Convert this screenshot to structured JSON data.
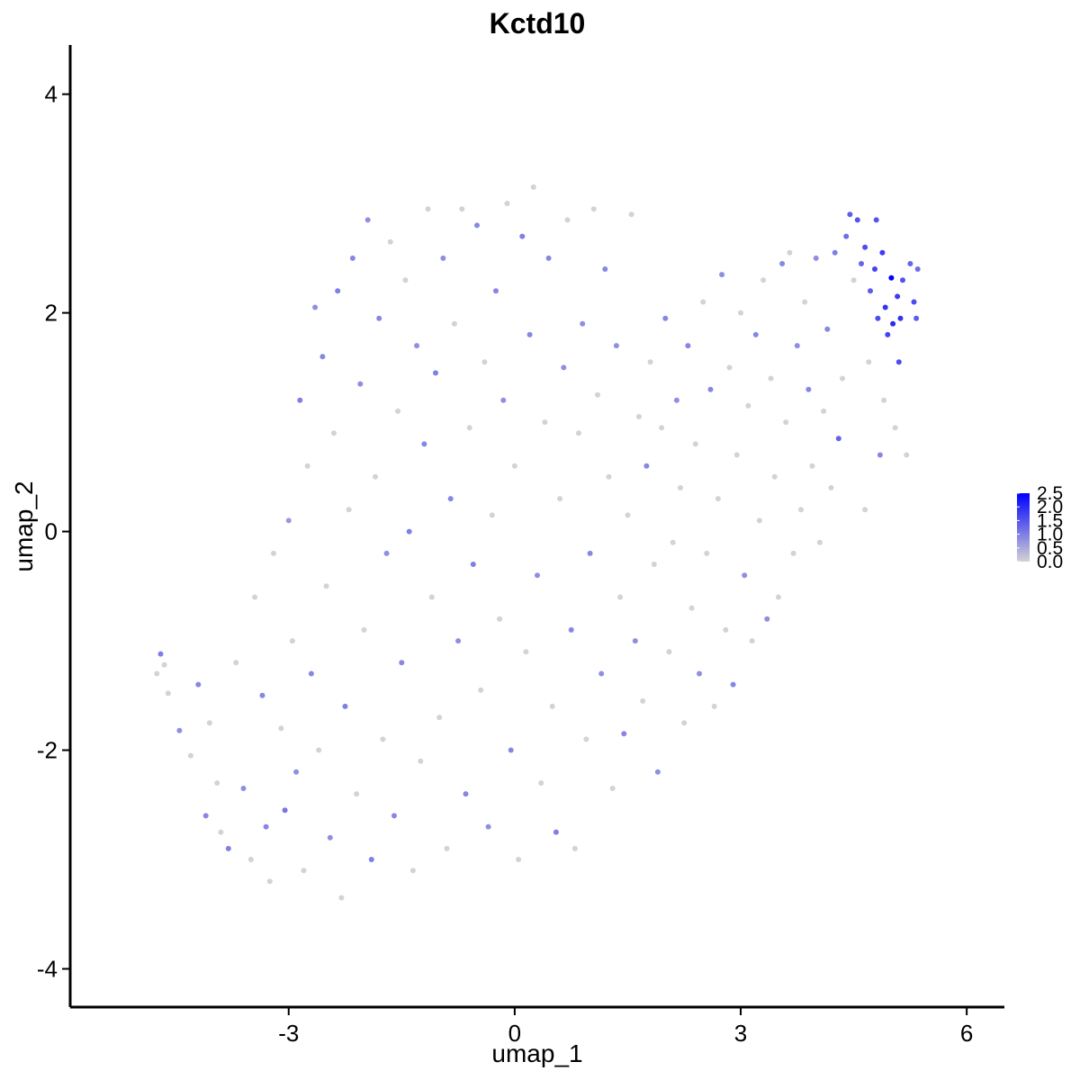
{
  "chart_data": {
    "type": "scatter",
    "title": "Kctd10",
    "xlabel": "umap_1",
    "ylabel": "umap_2",
    "xlim": [
      -5.9,
      6.5
    ],
    "ylim": [
      -4.35,
      4.45
    ],
    "xticks": [
      -3,
      0,
      3,
      6
    ],
    "yticks": [
      -4,
      -2,
      0,
      2,
      4
    ],
    "xtick_labels": [
      "-3",
      "0",
      "3",
      "6"
    ],
    "ytick_labels": [
      "-4",
      "-2",
      "0",
      "2",
      "4"
    ],
    "grid": false,
    "legend": {
      "placement": "right",
      "type": "colorbar",
      "min": 0.0,
      "max": 2.5,
      "ticks": [
        0.0,
        0.5,
        1.0,
        1.5,
        2.0,
        2.5
      ],
      "tick_labels": [
        "0.0",
        "0.5",
        "1.0",
        "1.5",
        "2.0",
        "2.5"
      ],
      "low_color": "#d3d3d3",
      "high_color": "#0000ff"
    },
    "points": [
      [
        -4.75,
        -1.3,
        0
      ],
      [
        -4.7,
        -1.12,
        1.0
      ],
      [
        -4.65,
        -1.22,
        0
      ],
      [
        -4.6,
        -1.48,
        0
      ],
      [
        -4.45,
        -1.82,
        0.8
      ],
      [
        -4.3,
        -2.05,
        0
      ],
      [
        -4.2,
        -1.4,
        0.9
      ],
      [
        -4.1,
        -2.6,
        0.9
      ],
      [
        -4.05,
        -1.75,
        0
      ],
      [
        -3.95,
        -2.3,
        0
      ],
      [
        -3.9,
        -2.75,
        0
      ],
      [
        -3.8,
        -2.9,
        1.0
      ],
      [
        -3.7,
        -1.2,
        0
      ],
      [
        -3.6,
        -2.35,
        0.8
      ],
      [
        -3.5,
        -3.0,
        0
      ],
      [
        -3.45,
        -0.6,
        0
      ],
      [
        -3.35,
        -1.5,
        0.9
      ],
      [
        -3.3,
        -2.7,
        0.9
      ],
      [
        -3.25,
        -3.2,
        0
      ],
      [
        -3.2,
        -0.2,
        0
      ],
      [
        -3.1,
        -1.8,
        0
      ],
      [
        -3.05,
        -2.55,
        1.1
      ],
      [
        -3.0,
        0.1,
        0.7
      ],
      [
        -2.95,
        -1.0,
        0
      ],
      [
        -2.9,
        -2.2,
        0.8
      ],
      [
        -2.85,
        1.2,
        1.0
      ],
      [
        -2.8,
        -3.1,
        0
      ],
      [
        -2.75,
        0.6,
        0
      ],
      [
        -2.7,
        -1.3,
        0.9
      ],
      [
        -2.65,
        2.05,
        0.8
      ],
      [
        -2.6,
        -2.0,
        0
      ],
      [
        -2.55,
        1.6,
        0.9
      ],
      [
        -2.5,
        -0.5,
        0
      ],
      [
        -2.45,
        -2.8,
        0.8
      ],
      [
        -2.4,
        0.9,
        0
      ],
      [
        -2.35,
        2.2,
        1.0
      ],
      [
        -2.3,
        -3.35,
        0
      ],
      [
        -2.25,
        -1.6,
        1.0
      ],
      [
        -2.2,
        0.2,
        0
      ],
      [
        -2.15,
        2.5,
        0.9
      ],
      [
        -2.1,
        -2.4,
        0
      ],
      [
        -2.05,
        1.35,
        0.8
      ],
      [
        -2.0,
        -0.9,
        0
      ],
      [
        -1.95,
        2.85,
        0.8
      ],
      [
        -1.9,
        -3.0,
        1.0
      ],
      [
        -1.85,
        0.5,
        0
      ],
      [
        -1.8,
        1.95,
        0.9
      ],
      [
        -1.75,
        -1.9,
        0
      ],
      [
        -1.7,
        -0.2,
        0.8
      ],
      [
        -1.65,
        2.65,
        0
      ],
      [
        -1.6,
        -2.6,
        0.9
      ],
      [
        -1.55,
        1.1,
        0
      ],
      [
        -1.5,
        -1.2,
        0.9
      ],
      [
        -1.45,
        2.3,
        0
      ],
      [
        -1.4,
        0.0,
        1.0
      ],
      [
        -1.35,
        -3.1,
        0
      ],
      [
        -1.3,
        1.7,
        0.8
      ],
      [
        -1.25,
        -2.1,
        0
      ],
      [
        -1.2,
        0.8,
        0.9
      ],
      [
        -1.15,
        2.95,
        0
      ],
      [
        -1.1,
        -0.6,
        0
      ],
      [
        -1.05,
        1.45,
        1.0
      ],
      [
        -1.0,
        -1.7,
        0
      ],
      [
        -0.95,
        2.5,
        0.8
      ],
      [
        -0.9,
        -2.9,
        0
      ],
      [
        -0.85,
        0.3,
        0.9
      ],
      [
        -0.8,
        1.9,
        0
      ],
      [
        -0.75,
        -1.0,
        0.8
      ],
      [
        -0.7,
        2.95,
        0
      ],
      [
        -0.65,
        -2.4,
        0.9
      ],
      [
        -0.6,
        0.95,
        0
      ],
      [
        -0.55,
        -0.3,
        1.0
      ],
      [
        -0.5,
        2.8,
        0.9
      ],
      [
        -0.45,
        -1.45,
        0
      ],
      [
        -0.4,
        1.55,
        0
      ],
      [
        -0.35,
        -2.7,
        0.8
      ],
      [
        -0.3,
        0.15,
        0
      ],
      [
        -0.25,
        2.2,
        0.9
      ],
      [
        -0.2,
        -0.8,
        0
      ],
      [
        -0.15,
        1.2,
        0.8
      ],
      [
        -0.1,
        3.0,
        0
      ],
      [
        -0.05,
        -2.0,
        0.9
      ],
      [
        0.0,
        0.6,
        0
      ],
      [
        0.05,
        -3.0,
        0
      ],
      [
        0.1,
        2.7,
        1.0
      ],
      [
        0.15,
        -1.1,
        0
      ],
      [
        0.2,
        1.8,
        0.9
      ],
      [
        0.25,
        3.15,
        0
      ],
      [
        0.3,
        -0.4,
        0.8
      ],
      [
        0.35,
        -2.3,
        0
      ],
      [
        0.4,
        1.0,
        0
      ],
      [
        0.45,
        2.5,
        0.9
      ],
      [
        0.5,
        -1.6,
        0
      ],
      [
        0.55,
        -2.75,
        1.0
      ],
      [
        0.6,
        0.3,
        0
      ],
      [
        0.65,
        1.5,
        0.8
      ],
      [
        0.7,
        2.85,
        0
      ],
      [
        0.75,
        -0.9,
        0.9
      ],
      [
        0.8,
        -2.9,
        0
      ],
      [
        0.85,
        0.9,
        0
      ],
      [
        0.9,
        1.9,
        0.8
      ],
      [
        0.95,
        -1.9,
        0
      ],
      [
        1.0,
        -0.2,
        0.9
      ],
      [
        1.05,
        2.95,
        0
      ],
      [
        1.1,
        1.25,
        0
      ],
      [
        1.15,
        -1.3,
        0.8
      ],
      [
        1.2,
        2.4,
        0.9
      ],
      [
        1.25,
        0.5,
        0
      ],
      [
        1.3,
        -2.35,
        0
      ],
      [
        1.35,
        1.7,
        0.8
      ],
      [
        1.4,
        -0.6,
        0
      ],
      [
        1.45,
        -1.85,
        0.9
      ],
      [
        1.5,
        0.15,
        0
      ],
      [
        1.55,
        2.9,
        0
      ],
      [
        1.6,
        -1.0,
        0.8
      ],
      [
        1.65,
        1.05,
        0
      ],
      [
        1.7,
        -1.55,
        0
      ],
      [
        1.75,
        0.6,
        0.9
      ],
      [
        1.8,
        1.55,
        0
      ],
      [
        1.85,
        -0.3,
        0
      ],
      [
        1.9,
        -2.2,
        0.8
      ],
      [
        1.95,
        0.95,
        0
      ],
      [
        2.0,
        1.95,
        0.9
      ],
      [
        2.05,
        -1.1,
        0
      ],
      [
        2.1,
        -0.1,
        0
      ],
      [
        2.15,
        1.2,
        0.8
      ],
      [
        2.2,
        0.4,
        0
      ],
      [
        2.25,
        -1.75,
        0
      ],
      [
        2.3,
        1.7,
        0.9
      ],
      [
        2.35,
        -0.7,
        0
      ],
      [
        2.4,
        0.8,
        0
      ],
      [
        2.45,
        -1.3,
        0.8
      ],
      [
        2.5,
        2.1,
        0
      ],
      [
        2.55,
        -0.2,
        0
      ],
      [
        2.6,
        1.3,
        0.9
      ],
      [
        2.65,
        -1.6,
        0
      ],
      [
        2.7,
        0.3,
        0
      ],
      [
        2.75,
        2.35,
        0.8
      ],
      [
        2.8,
        -0.9,
        0
      ],
      [
        2.85,
        1.5,
        0
      ],
      [
        2.9,
        -1.4,
        0.9
      ],
      [
        2.95,
        0.7,
        0
      ],
      [
        3.0,
        2.0,
        0
      ],
      [
        3.05,
        -0.4,
        0.8
      ],
      [
        3.1,
        1.15,
        0
      ],
      [
        3.15,
        -1.0,
        0
      ],
      [
        3.2,
        1.8,
        0.9
      ],
      [
        3.25,
        0.1,
        0
      ],
      [
        3.3,
        2.3,
        0
      ],
      [
        3.35,
        -0.8,
        0.8
      ],
      [
        3.4,
        1.4,
        0
      ],
      [
        3.45,
        0.5,
        0
      ],
      [
        3.5,
        -0.6,
        0
      ],
      [
        3.55,
        2.45,
        0.9
      ],
      [
        3.6,
        1.0,
        0
      ],
      [
        3.65,
        2.55,
        0
      ],
      [
        3.7,
        -0.2,
        0
      ],
      [
        3.75,
        1.7,
        0.8
      ],
      [
        3.8,
        0.2,
        0
      ],
      [
        3.85,
        2.1,
        0
      ],
      [
        3.9,
        1.3,
        0.9
      ],
      [
        3.95,
        0.6,
        0
      ],
      [
        4.0,
        2.5,
        0.8
      ],
      [
        4.05,
        -0.1,
        0
      ],
      [
        4.1,
        1.1,
        0
      ],
      [
        4.15,
        1.85,
        0.9
      ],
      [
        4.2,
        0.4,
        0
      ],
      [
        4.25,
        2.55,
        1.0
      ],
      [
        4.3,
        0.85,
        1.3
      ],
      [
        4.35,
        1.4,
        0
      ],
      [
        4.4,
        2.7,
        1.2
      ],
      [
        4.45,
        2.9,
        1.4
      ],
      [
        4.5,
        2.3,
        0
      ],
      [
        4.55,
        2.85,
        1.5
      ],
      [
        4.6,
        2.45,
        1.3
      ],
      [
        4.65,
        0.2,
        0
      ],
      [
        4.65,
        2.6,
        1.6
      ],
      [
        4.7,
        1.55,
        0
      ],
      [
        4.72,
        2.2,
        1.4
      ],
      [
        4.78,
        2.4,
        1.7
      ],
      [
        4.8,
        2.85,
        1.5
      ],
      [
        4.82,
        1.95,
        1.6
      ],
      [
        4.85,
        0.7,
        0.9
      ],
      [
        4.88,
        2.55,
        1.8
      ],
      [
        4.9,
        1.2,
        0
      ],
      [
        4.92,
        2.05,
        1.9
      ],
      [
        4.95,
        1.8,
        1.7
      ],
      [
        5.0,
        2.32,
        2.5
      ],
      [
        5.02,
        1.9,
        2.0
      ],
      [
        5.05,
        0.95,
        0
      ],
      [
        5.08,
        2.15,
        1.8
      ],
      [
        5.1,
        1.55,
        1.6
      ],
      [
        5.12,
        1.95,
        1.9
      ],
      [
        5.15,
        2.3,
        1.5
      ],
      [
        5.2,
        0.7,
        0
      ],
      [
        5.25,
        2.45,
        1.3
      ],
      [
        5.3,
        2.1,
        1.6
      ],
      [
        5.33,
        1.95,
        1.4
      ],
      [
        5.35,
        2.4,
        1.2
      ]
    ]
  }
}
